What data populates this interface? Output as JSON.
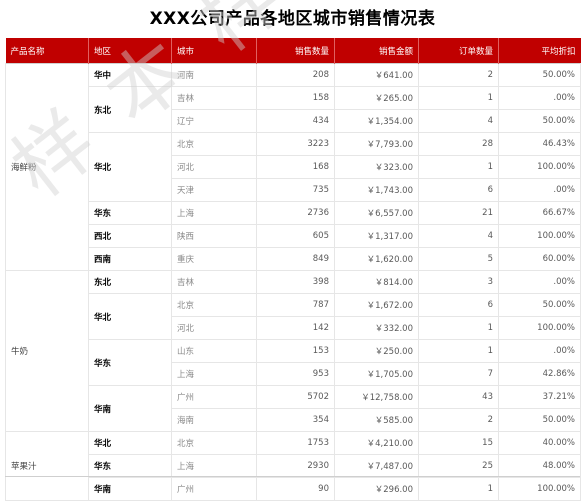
{
  "title": "XXX公司产品各地区城市销售情况表",
  "watermark_text": "样本样本样",
  "header": {
    "product": "产品名称",
    "region": "地区",
    "city": "城市",
    "qty": "销售数量",
    "amount": "销售金额",
    "orders": "订单数量",
    "discount": "平均折扣"
  },
  "colors": {
    "header_bg": "#c00000",
    "header_text": "#ffffff",
    "grid": "#e6e6e6",
    "watermark": "#d9d9d9"
  },
  "groups": [
    {
      "product": "海鲜粉",
      "regions": [
        {
          "name": "华中",
          "rows": [
            {
              "city": "河南",
              "qty": "208",
              "amount": "￥641.00",
              "orders": "2",
              "discount": "50.00%"
            }
          ]
        },
        {
          "name": "东北",
          "rows": [
            {
              "city": "吉林",
              "qty": "158",
              "amount": "￥265.00",
              "orders": "1",
              "discount": ".00%"
            },
            {
              "city": "辽宁",
              "qty": "434",
              "amount": "￥1,354.00",
              "orders": "4",
              "discount": "50.00%"
            }
          ]
        },
        {
          "name": "华北",
          "rows": [
            {
              "city": "北京",
              "qty": "3223",
              "amount": "￥7,793.00",
              "orders": "28",
              "discount": "46.43%"
            },
            {
              "city": "河北",
              "qty": "168",
              "amount": "￥323.00",
              "orders": "1",
              "discount": "100.00%"
            },
            {
              "city": "天津",
              "qty": "735",
              "amount": "￥1,743.00",
              "orders": "6",
              "discount": ".00%"
            }
          ]
        },
        {
          "name": "华东",
          "rows": [
            {
              "city": "上海",
              "qty": "2736",
              "amount": "￥6,557.00",
              "orders": "21",
              "discount": "66.67%"
            }
          ]
        },
        {
          "name": "西北",
          "rows": [
            {
              "city": "陕西",
              "qty": "605",
              "amount": "￥1,317.00",
              "orders": "4",
              "discount": "100.00%"
            }
          ]
        },
        {
          "name": "西南",
          "rows": [
            {
              "city": "重庆",
              "qty": "849",
              "amount": "￥1,620.00",
              "orders": "5",
              "discount": "60.00%"
            }
          ]
        }
      ]
    },
    {
      "product": "牛奶",
      "regions": [
        {
          "name": "东北",
          "rows": [
            {
              "city": "吉林",
              "qty": "398",
              "amount": "￥814.00",
              "orders": "3",
              "discount": ".00%"
            }
          ]
        },
        {
          "name": "华北",
          "rows": [
            {
              "city": "北京",
              "qty": "787",
              "amount": "￥1,672.00",
              "orders": "6",
              "discount": "50.00%"
            },
            {
              "city": "河北",
              "qty": "142",
              "amount": "￥332.00",
              "orders": "1",
              "discount": "100.00%"
            }
          ]
        },
        {
          "name": "华东",
          "rows": [
            {
              "city": "山东",
              "qty": "153",
              "amount": "￥250.00",
              "orders": "1",
              "discount": ".00%"
            },
            {
              "city": "上海",
              "qty": "953",
              "amount": "￥1,705.00",
              "orders": "7",
              "discount": "42.86%"
            }
          ]
        },
        {
          "name": "华南",
          "rows": [
            {
              "city": "广州",
              "qty": "5702",
              "amount": "￥12,758.00",
              "orders": "43",
              "discount": "37.21%"
            },
            {
              "city": "海南",
              "qty": "354",
              "amount": "￥585.00",
              "orders": "2",
              "discount": "50.00%"
            }
          ]
        }
      ]
    },
    {
      "product": "苹果汁",
      "regions": [
        {
          "name": "华北",
          "rows": [
            {
              "city": "北京",
              "qty": "1753",
              "amount": "￥4,210.00",
              "orders": "15",
              "discount": "40.00%"
            }
          ]
        },
        {
          "name": "华东",
          "rows": [
            {
              "city": "上海",
              "qty": "2930",
              "amount": "￥7,487.00",
              "orders": "25",
              "discount": "48.00%"
            }
          ]
        },
        {
          "name": "华南",
          "rows": [
            {
              "city": "广州",
              "qty": "90",
              "amount": "￥296.00",
              "orders": "1",
              "discount": "100.00%"
            }
          ]
        }
      ]
    }
  ]
}
